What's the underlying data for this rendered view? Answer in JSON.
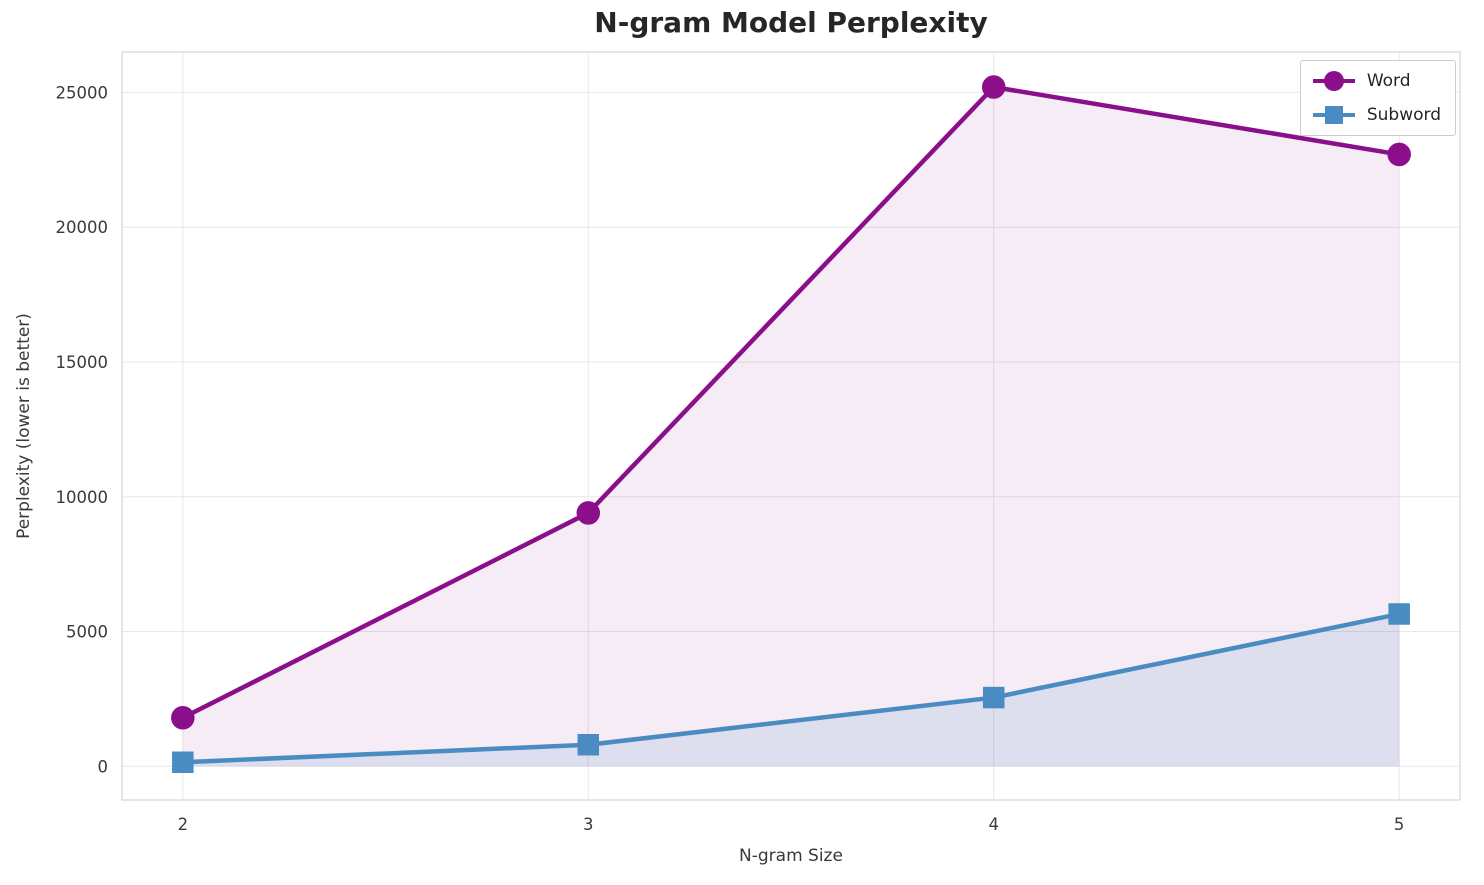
{
  "chart_data": {
    "type": "line",
    "title": "N-gram Model Perplexity",
    "xlabel": "N-gram Size",
    "ylabel": "Perplexity (lower is better)",
    "x": [
      2,
      3,
      4,
      5
    ],
    "series": [
      {
        "name": "Word",
        "values": [
          1800,
          9400,
          25200,
          22700
        ],
        "color": "#8b0f8b",
        "marker": "circle",
        "fill_alpha": 0.08
      },
      {
        "name": "Subword",
        "values": [
          150,
          800,
          2550,
          5650
        ],
        "color": "#4a8bc2",
        "marker": "square",
        "fill_alpha": 0.14
      }
    ],
    "xticks": [
      2,
      3,
      4,
      5
    ],
    "yticks": [
      0,
      5000,
      10000,
      15000,
      20000,
      25000
    ],
    "xlim": [
      1.85,
      5.15
    ],
    "ylim": [
      -1250,
      26500
    ],
    "grid": true,
    "legend_position": "upper right",
    "grid_color": "#e7e7e7",
    "spine_color": "#d9d9d9",
    "tick_label_color": "#3a3a3a"
  }
}
